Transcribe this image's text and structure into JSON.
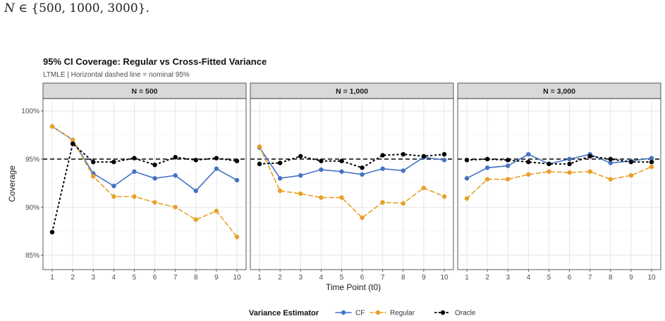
{
  "caption": {
    "prefix": "N",
    "rest": " ∈ {500, 1000, 3000}."
  },
  "chart_data": {
    "type": "line",
    "title": "95% CI Coverage: Regular vs Cross-Fitted Variance",
    "subtitle": "LTMLE | Horizontal dashed line = nominal 95%",
    "xlabel": "Time Point (t0)",
    "ylabel": "Coverage",
    "x": [
      1,
      2,
      3,
      4,
      5,
      6,
      7,
      8,
      9,
      10
    ],
    "ylim": [
      83.5,
      101.3
    ],
    "yticks": [
      85,
      90,
      95,
      100
    ],
    "ytick_labels": [
      "85%",
      "90%",
      "95%",
      "100%"
    ],
    "reference_line": 95,
    "grid": true,
    "legend": {
      "title": "Variance Estimator",
      "position": "bottom",
      "entries": [
        "CF",
        "Regular",
        "Oracle"
      ]
    },
    "colors": {
      "CF": "#4472C4",
      "Regular": "#E8A027",
      "Oracle": "#000000"
    },
    "panels": [
      {
        "label": "N = 500",
        "series": [
          {
            "name": "CF",
            "values": [
              98.4,
              97.0,
              93.5,
              92.2,
              93.7,
              93.0,
              93.3,
              91.7,
              94.0,
              92.8
            ]
          },
          {
            "name": "Regular",
            "values": [
              98.4,
              97.0,
              93.2,
              91.1,
              91.1,
              90.5,
              90.0,
              88.7,
              89.6,
              86.9
            ]
          },
          {
            "name": "Oracle",
            "values": [
              87.4,
              96.6,
              94.7,
              94.7,
              95.1,
              94.4,
              95.2,
              94.9,
              95.1,
              94.8
            ]
          }
        ]
      },
      {
        "label": "N = 1,000",
        "series": [
          {
            "name": "CF",
            "values": [
              96.2,
              93.0,
              93.3,
              93.9,
              93.7,
              93.4,
              94.0,
              93.8,
              95.2,
              94.9
            ]
          },
          {
            "name": "Regular",
            "values": [
              96.3,
              91.7,
              91.4,
              91.0,
              91.0,
              88.9,
              90.5,
              90.4,
              92.0,
              91.1
            ]
          },
          {
            "name": "Oracle",
            "values": [
              94.5,
              94.6,
              95.3,
              94.8,
              94.8,
              94.1,
              95.4,
              95.5,
              95.3,
              95.5
            ]
          }
        ]
      },
      {
        "label": "N = 3,000",
        "series": [
          {
            "name": "CF",
            "values": [
              93.0,
              94.1,
              94.3,
              95.5,
              94.5,
              95.0,
              95.5,
              94.6,
              94.8,
              95.1
            ]
          },
          {
            "name": "Regular",
            "values": [
              90.9,
              92.9,
              92.9,
              93.4,
              93.7,
              93.6,
              93.7,
              92.9,
              93.3,
              94.2
            ]
          },
          {
            "name": "Oracle",
            "values": [
              94.9,
              95.0,
              94.9,
              94.7,
              94.5,
              94.5,
              95.3,
              95.0,
              94.7,
              94.7
            ]
          }
        ]
      }
    ]
  }
}
